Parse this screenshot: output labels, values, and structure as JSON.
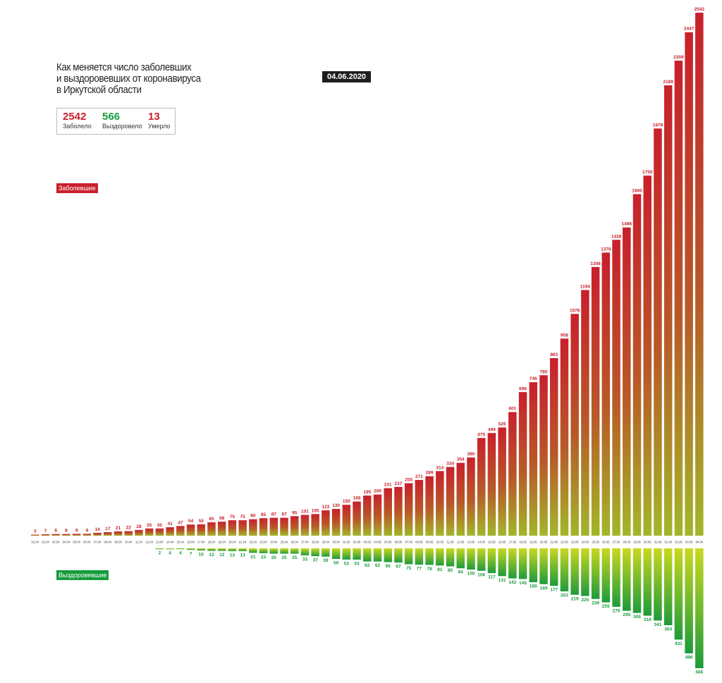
{
  "header": {
    "title_lines": [
      "Как меняется число заболевших",
      "и выздоровевших от коронавируса",
      "в Иркутской области"
    ],
    "date": "04.06.2020"
  },
  "stats": {
    "infected": {
      "value": "2542",
      "label": "Заболело",
      "color": "#c8202c"
    },
    "recovered": {
      "value": "566",
      "label": "Выздоровело",
      "color": "#169b3c"
    },
    "died": {
      "value": "13",
      "label": "Умерло",
      "color": "#c8202c"
    }
  },
  "labels": {
    "infected_tag": "Заболевшие",
    "recovered_tag": "Выздоровевшие"
  },
  "colors": {
    "infected_top": "#c8202c",
    "infected_bottom": "#a3b62a",
    "recovered_top": "#c8d81f",
    "recovered_bottom": "#1e9b3a",
    "infected_label": "#c8202c",
    "recovered_label": "#169b3c"
  },
  "chart_data": {
    "type": "bar",
    "categories": [
      "01.04",
      "02.04",
      "03.04",
      "04.04",
      "05.04",
      "06.04",
      "07.04",
      "08.04",
      "09.04",
      "10.04",
      "11.04",
      "12.04",
      "13.04",
      "14.04",
      "15.04",
      "16.04",
      "17.04",
      "18.04",
      "19.04",
      "20.04",
      "21.04",
      "22.04",
      "23.04",
      "24.04",
      "25.04",
      "26.04",
      "27.04",
      "28.04",
      "29.04",
      "30.04",
      "01.05",
      "02.05",
      "03.05",
      "04.05",
      "05.05",
      "06.05",
      "07.05",
      "08.05",
      "09.05",
      "10.05",
      "11.05",
      "12.05",
      "13.05",
      "14.05",
      "15.05",
      "16.05",
      "17.05",
      "18.05",
      "19.05",
      "20.05",
      "21.05",
      "22.05",
      "23.05",
      "24.05",
      "25.05",
      "26.05",
      "27.05",
      "28.05",
      "29.05",
      "30.05",
      "31.05",
      "01.06",
      "02.06",
      "03.06",
      "04.06"
    ],
    "series": [
      {
        "name": "Заболевшие",
        "values": [
          3,
          7,
          8,
          8,
          9,
          9,
          14,
          17,
          21,
          22,
          28,
          35,
          35,
          41,
          47,
          54,
          55,
          65,
          68,
          75,
          75,
          80,
          85,
          87,
          87,
          95,
          101,
          105,
          123,
          130,
          150,
          166,
          195,
          200,
          231,
          237,
          255,
          271,
          289,
          314,
          334,
          354,
          380,
          475,
          499,
          526,
          601,
          698,
          746,
          780,
          863,
          958,
          1078,
          1194,
          1306,
          1376,
          1438,
          1498,
          1660,
          1750,
          1979,
          2189,
          2309,
          2447,
          2542
        ]
      },
      {
        "name": "Выздоровевшие",
        "values": [
          null,
          null,
          null,
          null,
          null,
          null,
          null,
          null,
          null,
          null,
          null,
          null,
          2,
          4,
          4,
          7,
          10,
          12,
          12,
          13,
          13,
          21,
          23,
          25,
          25,
          25,
          33,
          37,
          39,
          50,
          53,
          53,
          62,
          62,
          65,
          67,
          75,
          77,
          78,
          81,
          85,
          94,
          100,
          106,
          117,
          131,
          142,
          145,
          160,
          169,
          177,
          203,
          219,
          225,
          239,
          255,
          276,
          295,
          305,
          318,
          341,
          363,
          431,
          496,
          566
        ]
      }
    ]
  }
}
